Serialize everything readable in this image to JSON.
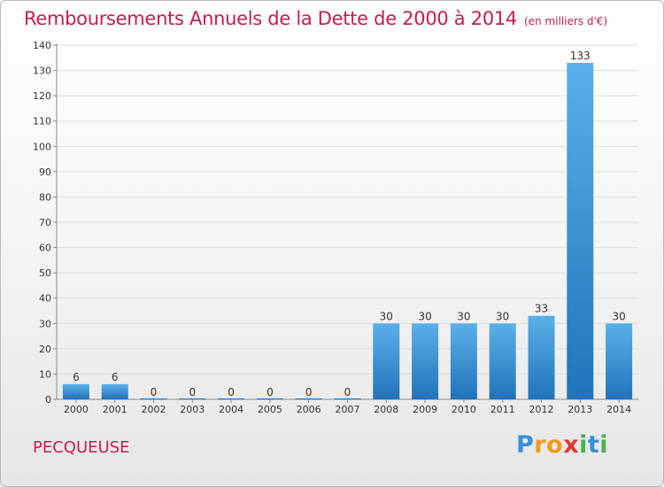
{
  "header": {
    "title": "Remboursements Annuels de la Dette de 2000 à 2014",
    "unit": "(en milliers d'€)"
  },
  "footer": {
    "commune": "PECQUEUSE",
    "logo_letters": [
      "P",
      "r",
      "o",
      "x",
      "i",
      "t",
      "i"
    ],
    "logo_colors": [
      "#3b8fd9",
      "#f29a1a",
      "#f29a1a",
      "#e23a2e",
      "#4caf50",
      "#3b8fd9",
      "#4caf50"
    ]
  },
  "colors": {
    "accent": "#c21d56",
    "bar_top": "#5bb0ea",
    "bar_bottom": "#2073b8"
  },
  "chart_data": {
    "type": "bar",
    "title": "Remboursements Annuels de la Dette de 2000 à 2014",
    "xlabel": "",
    "ylabel": "",
    "categories": [
      "2000",
      "2001",
      "2002",
      "2003",
      "2004",
      "2005",
      "2006",
      "2007",
      "2008",
      "2009",
      "2010",
      "2011",
      "2012",
      "2013",
      "2014"
    ],
    "values": [
      6,
      6,
      0,
      0,
      0,
      0,
      0,
      0,
      30,
      30,
      30,
      30,
      33,
      133,
      30
    ],
    "ylim": [
      0,
      140
    ],
    "yticks": [
      0,
      10,
      20,
      30,
      40,
      50,
      60,
      70,
      80,
      90,
      100,
      110,
      120,
      130,
      140
    ],
    "grid": true
  }
}
